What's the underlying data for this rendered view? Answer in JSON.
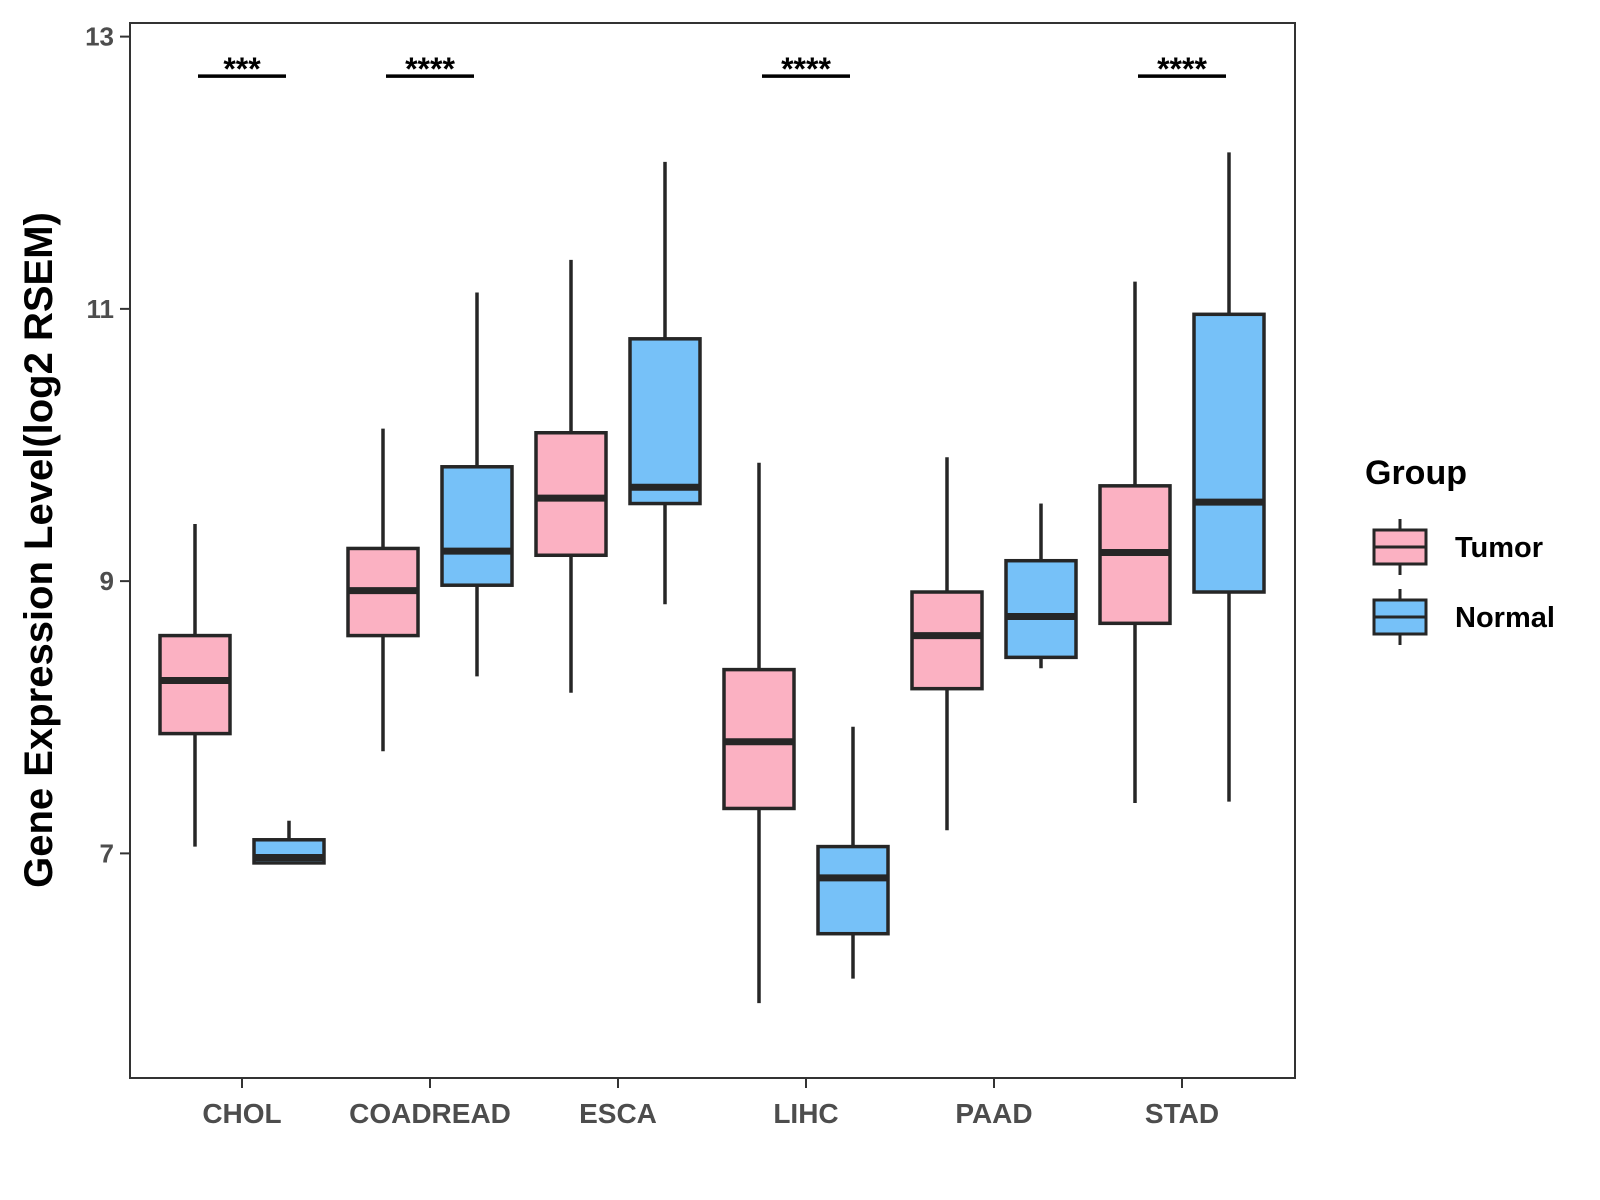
{
  "chart_data": {
    "type": "boxplot",
    "title": "",
    "xlabel": "",
    "ylabel": "Gene Expression Level(log2 RSEM)",
    "ylim": [
      5.35,
      13.1
    ],
    "yticks": [
      7,
      9,
      11,
      13
    ],
    "grid": false,
    "legend": {
      "title": "Group",
      "position": "right"
    },
    "categories": [
      "CHOL",
      "COADREAD",
      "ESCA",
      "LIHC",
      "PAAD",
      "STAD"
    ],
    "series": [
      {
        "name": "Tumor",
        "color": "#fbb1c2",
        "boxes": [
          {
            "min": 7.05,
            "q1": 7.88,
            "median": 8.27,
            "q3": 8.6,
            "max": 9.42
          },
          {
            "min": 7.75,
            "q1": 8.6,
            "median": 8.93,
            "q3": 9.24,
            "max": 10.12
          },
          {
            "min": 8.18,
            "q1": 9.19,
            "median": 9.61,
            "q3": 10.09,
            "max": 11.36
          },
          {
            "min": 5.9,
            "q1": 7.33,
            "median": 7.82,
            "q3": 8.35,
            "max": 9.87
          },
          {
            "min": 7.17,
            "q1": 8.21,
            "median": 8.6,
            "q3": 8.92,
            "max": 9.91
          },
          {
            "min": 7.37,
            "q1": 8.69,
            "median": 9.21,
            "q3": 9.7,
            "max": 11.2
          }
        ]
      },
      {
        "name": "Normal",
        "color": "#76c1f8",
        "boxes": [
          {
            "min": 6.93,
            "q1": 6.93,
            "median": 6.97,
            "q3": 7.1,
            "max": 7.24
          },
          {
            "min": 8.3,
            "q1": 8.97,
            "median": 9.22,
            "q3": 9.84,
            "max": 11.12
          },
          {
            "min": 8.83,
            "q1": 9.57,
            "median": 9.69,
            "q3": 10.78,
            "max": 12.08
          },
          {
            "min": 6.08,
            "q1": 6.41,
            "median": 6.82,
            "q3": 7.05,
            "max": 7.93
          },
          {
            "min": 8.36,
            "q1": 8.44,
            "median": 8.74,
            "q3": 9.15,
            "max": 9.57
          },
          {
            "min": 7.38,
            "q1": 8.92,
            "median": 9.58,
            "q3": 10.96,
            "max": 12.15
          }
        ]
      }
    ],
    "significance": [
      {
        "category": "CHOL",
        "label": "***",
        "y": 12.71
      },
      {
        "category": "COADREAD",
        "label": "****",
        "y": 12.71
      },
      {
        "category": "LIHC",
        "label": "****",
        "y": 12.71
      },
      {
        "category": "STAD",
        "label": "****",
        "y": 12.71
      }
    ]
  }
}
